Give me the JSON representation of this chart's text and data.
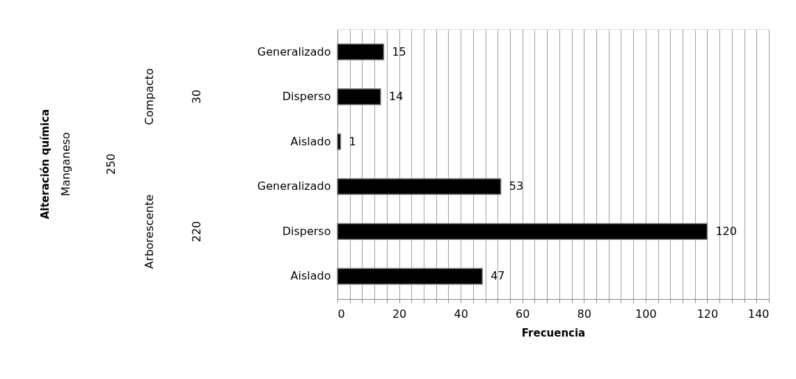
{
  "chart_data": {
    "type": "bar",
    "orientation": "horizontal",
    "categories": [
      "Generalizado",
      "Disperso",
      "Aislado",
      "Generalizado",
      "Disperso",
      "Aislado"
    ],
    "values": [
      15,
      14,
      1,
      53,
      120,
      47
    ],
    "color": "#000000",
    "xlabel": "Frecuencia",
    "annotations": [
      "Alteración química",
      "Manganeso",
      "250",
      "Compacto",
      "30",
      "Arborescente",
      "220"
    ],
    "xlim": [
      0,
      140
    ],
    "xticks": [
      0,
      {
        "value": 4,
        "label": null
      },
      {
        "value": 8,
        "label": null
      },
      {
        "value": 12,
        "label": null
      },
      {
        "value": 16,
        "label": null
      },
      20,
      {
        "value": 24,
        "label": null
      },
      {
        "value": 28,
        "label": null
      },
      {
        "value": 32,
        "label": null
      },
      {
        "value": 36,
        "label": null
      },
      40,
      {
        "value": 44,
        "label": null
      },
      {
        "value": 48,
        "label": null
      },
      {
        "value": 52,
        "label": null
      },
      {
        "value": 56,
        "label": null
      },
      60,
      {
        "value": 64,
        "label": null
      },
      {
        "value": 68,
        "label": null
      },
      {
        "value": 72,
        "label": null
      },
      {
        "value": 76,
        "label": null
      },
      80,
      {
        "value": 84,
        "label": null
      },
      {
        "value": 88,
        "label": null
      },
      {
        "value": 92,
        "label": null
      },
      {
        "value": 96,
        "label": null
      },
      100,
      {
        "value": 104,
        "label": null
      },
      {
        "value": 108,
        "label": null
      },
      {
        "value": 112,
        "label": null
      },
      {
        "value": 116,
        "label": null
      },
      120,
      {
        "value": 124,
        "label": null
      },
      {
        "value": 128,
        "label": null
      },
      {
        "value": 132,
        "label": null
      },
      {
        "value": 136,
        "label": null
      },
      140
    ],
    "grid": "x",
    "data_labels": true,
    "legend": false
  }
}
